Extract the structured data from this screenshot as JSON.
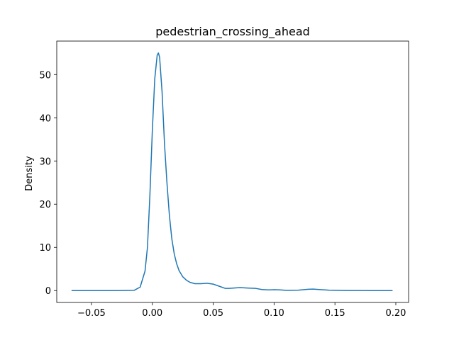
{
  "chart_data": {
    "type": "line",
    "title": "pedestrian_crossing_ahead",
    "xlabel": "",
    "ylabel": "Density",
    "xlim": [
      -0.0785,
      0.2105
    ],
    "ylim": [
      -2.75,
      57.75
    ],
    "xticks": [
      -0.05,
      0.0,
      0.05,
      0.1,
      0.15,
      0.2
    ],
    "xtick_labels": [
      "−0.05",
      "0.00",
      "0.05",
      "0.10",
      "0.15",
      "0.20"
    ],
    "yticks": [
      0,
      10,
      20,
      30,
      40,
      50
    ],
    "ytick_labels": [
      "0",
      "10",
      "20",
      "30",
      "40",
      "50"
    ],
    "grid": false,
    "series": [
      {
        "color": "#1f77b4",
        "x": [
          -0.066,
          -0.03,
          -0.015,
          -0.01,
          -0.006,
          -0.004,
          -0.002,
          0.0,
          0.002,
          0.004,
          0.005,
          0.006,
          0.008,
          0.01,
          0.012,
          0.014,
          0.016,
          0.018,
          0.02,
          0.022,
          0.025,
          0.028,
          0.031,
          0.035,
          0.04,
          0.045,
          0.05,
          0.055,
          0.06,
          0.063,
          0.067,
          0.072,
          0.078,
          0.085,
          0.09,
          0.095,
          0.1,
          0.105,
          0.11,
          0.12,
          0.128,
          0.132,
          0.137,
          0.145,
          0.16,
          0.18,
          0.197
        ],
        "y": [
          0,
          0,
          0.05,
          0.8,
          4.5,
          10,
          22,
          37,
          49,
          54.5,
          55,
          54,
          46,
          34,
          25,
          17.5,
          12,
          8.5,
          6.2,
          4.6,
          3.2,
          2.4,
          1.9,
          1.6,
          1.6,
          1.7,
          1.5,
          1.0,
          0.5,
          0.5,
          0.6,
          0.7,
          0.6,
          0.5,
          0.25,
          0.15,
          0.2,
          0.15,
          0.05,
          0.1,
          0.3,
          0.35,
          0.25,
          0.1,
          0.02,
          0,
          0
        ]
      }
    ]
  }
}
